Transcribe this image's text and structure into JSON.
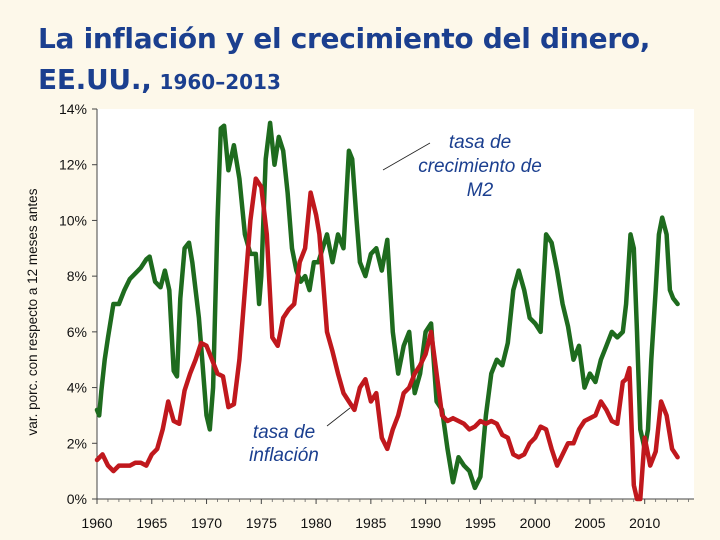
{
  "title": "La inflación y el crecimiento del dinero,",
  "title_line2": "EE.UU.,",
  "title_years": "1960–2013",
  "chart_data": {
    "type": "line",
    "title": "La inflación y el crecimiento del dinero, EE.UU., 1960–2013",
    "xlabel": "",
    "ylabel": "var. porc. con respecto a 12 meses antes",
    "xlim": [
      1960,
      2014.5
    ],
    "ylim": [
      0,
      14
    ],
    "x_ticks": [
      "1960",
      "1965",
      "1970",
      "1975",
      "1980",
      "1985",
      "1990",
      "1995",
      "2000",
      "2005",
      "2010"
    ],
    "y_ticks": [
      "0%",
      "2%",
      "4%",
      "6%",
      "8%",
      "10%",
      "12%",
      "14%"
    ],
    "grid": false,
    "annotations": [
      {
        "lines": [
          "tasa de",
          "crecimiento de",
          "M2"
        ],
        "series": "M2"
      },
      {
        "lines": [
          "tasa de",
          "inflación"
        ],
        "series": "inflation"
      }
    ],
    "series": [
      {
        "key": "M2",
        "color": "#1e6b1e",
        "x": [
          1960.0,
          1960.2,
          1960.4,
          1960.7,
          1961.0,
          1961.5,
          1962.0,
          1962.5,
          1963.0,
          1963.5,
          1964.0,
          1964.5,
          1964.8,
          1965.3,
          1965.8,
          1966.2,
          1966.6,
          1967.0,
          1967.3,
          1967.6,
          1968.0,
          1968.4,
          1968.7,
          1969.0,
          1969.3,
          1969.6,
          1970.0,
          1970.3,
          1970.6,
          1971.0,
          1971.3,
          1971.6,
          1972.0,
          1972.5,
          1973.0,
          1973.5,
          1974.0,
          1974.5,
          1974.8,
          1975.0,
          1975.4,
          1975.8,
          1976.2,
          1976.6,
          1977.0,
          1977.4,
          1977.8,
          1978.2,
          1978.6,
          1979.0,
          1979.4,
          1979.8,
          1980.2,
          1980.6,
          1981.0,
          1981.5,
          1982.0,
          1982.5,
          1983.0,
          1983.3,
          1983.7,
          1984.0,
          1984.5,
          1985.0,
          1985.5,
          1986.0,
          1986.5,
          1987.0,
          1987.5,
          1988.0,
          1988.5,
          1989.0,
          1989.5,
          1990.0,
          1990.5,
          1991.0,
          1991.5,
          1992.0,
          1992.5,
          1993.0,
          1993.5,
          1994.0,
          1994.5,
          1995.0,
          1995.5,
          1996.0,
          1996.5,
          1997.0,
          1997.5,
          1998.0,
          1998.5,
          1999.0,
          1999.5,
          2000.0,
          2000.5,
          2001.0,
          2001.5,
          2002.0,
          2002.5,
          2003.0,
          2003.5,
          2004.0,
          2004.5,
          2005.0,
          2005.5,
          2006.0,
          2006.5,
          2007.0,
          2007.5,
          2008.0,
          2008.3,
          2008.7,
          2009.0,
          2009.3,
          2009.6,
          2010.0,
          2010.3,
          2010.6,
          2011.0,
          2011.3,
          2011.6,
          2012.0,
          2012.3,
          2012.6,
          2013.0
        ],
        "values": [
          3.2,
          3.0,
          3.9,
          5.0,
          5.8,
          7.0,
          7.0,
          7.5,
          7.9,
          8.1,
          8.3,
          8.6,
          8.7,
          7.8,
          7.6,
          8.2,
          7.5,
          4.6,
          4.4,
          7.2,
          9.0,
          9.2,
          8.5,
          7.5,
          6.5,
          5.0,
          3.0,
          2.5,
          4.0,
          10.0,
          13.3,
          13.4,
          11.8,
          12.7,
          11.5,
          9.5,
          8.8,
          8.8,
          7.0,
          8.0,
          12.2,
          13.5,
          12.0,
          13.0,
          12.5,
          11.0,
          9.0,
          8.2,
          7.8,
          8.0,
          7.5,
          8.5,
          8.5,
          9.0,
          9.5,
          8.5,
          9.5,
          9.0,
          12.5,
          12.2,
          10.0,
          8.5,
          8.0,
          8.8,
          9.0,
          8.2,
          9.3,
          6.0,
          4.5,
          5.5,
          6.0,
          3.8,
          4.5,
          6.0,
          6.3,
          3.5,
          3.2,
          1.8,
          0.6,
          1.5,
          1.2,
          1.0,
          0.4,
          0.8,
          3.0,
          4.5,
          5.0,
          4.8,
          5.6,
          7.5,
          8.2,
          7.5,
          6.5,
          6.3,
          6.0,
          9.5,
          9.2,
          8.2,
          7.0,
          6.2,
          5.0,
          5.5,
          4.0,
          4.5,
          4.2,
          5.0,
          5.5,
          6.0,
          5.8,
          6.0,
          7.0,
          9.5,
          9.0,
          6.0,
          2.5,
          1.8,
          2.5,
          5.0,
          7.5,
          9.5,
          10.1,
          9.5,
          7.5,
          7.2,
          7.0
        ]
      },
      {
        "key": "inflation",
        "color": "#c0181d",
        "x": [
          1960.0,
          1960.5,
          1961.0,
          1961.5,
          1962.0,
          1962.5,
          1963.0,
          1963.5,
          1964.0,
          1964.5,
          1965.0,
          1965.5,
          1966.0,
          1966.5,
          1967.0,
          1967.5,
          1968.0,
          1968.5,
          1969.0,
          1969.5,
          1970.0,
          1970.5,
          1971.0,
          1971.5,
          1972.0,
          1972.5,
          1973.0,
          1973.5,
          1974.0,
          1974.5,
          1975.0,
          1975.5,
          1976.0,
          1976.5,
          1977.0,
          1977.5,
          1978.0,
          1978.5,
          1979.0,
          1979.5,
          1980.0,
          1980.3,
          1980.6,
          1981.0,
          1981.5,
          1982.0,
          1982.5,
          1983.0,
          1983.5,
          1984.0,
          1984.5,
          1985.0,
          1985.5,
          1986.0,
          1986.5,
          1987.0,
          1987.5,
          1988.0,
          1988.5,
          1989.0,
          1989.5,
          1990.0,
          1990.5,
          1991.0,
          1991.5,
          1992.0,
          1992.5,
          1993.0,
          1993.5,
          1994.0,
          1994.5,
          1995.0,
          1995.5,
          1996.0,
          1996.5,
          1997.0,
          1997.5,
          1998.0,
          1998.5,
          1999.0,
          1999.5,
          2000.0,
          2000.5,
          2001.0,
          2001.5,
          2002.0,
          2002.5,
          2003.0,
          2003.5,
          2004.0,
          2004.5,
          2005.0,
          2005.5,
          2006.0,
          2006.5,
          2007.0,
          2007.5,
          2008.0,
          2008.3,
          2008.6,
          2009.0,
          2009.3,
          2009.6,
          2010.0,
          2010.5,
          2011.0,
          2011.5,
          2012.0,
          2012.5,
          2013.0
        ],
        "values": [
          1.4,
          1.6,
          1.2,
          1.0,
          1.2,
          1.2,
          1.2,
          1.3,
          1.3,
          1.2,
          1.6,
          1.8,
          2.5,
          3.5,
          2.8,
          2.7,
          3.9,
          4.5,
          5.0,
          5.6,
          5.5,
          5.0,
          4.5,
          4.4,
          3.3,
          3.4,
          5.0,
          7.5,
          10.0,
          11.5,
          11.2,
          9.5,
          5.8,
          5.5,
          6.5,
          6.8,
          7.0,
          8.5,
          9.0,
          11.0,
          10.2,
          9.5,
          8.0,
          6.0,
          5.3,
          4.5,
          3.8,
          3.5,
          3.2,
          4.0,
          4.3,
          3.5,
          3.8,
          2.2,
          1.8,
          2.5,
          3.0,
          3.8,
          4.0,
          4.5,
          4.8,
          5.2,
          6.0,
          4.5,
          3.0,
          2.8,
          2.9,
          2.8,
          2.7,
          2.5,
          2.6,
          2.8,
          2.7,
          2.8,
          2.7,
          2.3,
          2.2,
          1.6,
          1.5,
          1.6,
          2.0,
          2.2,
          2.6,
          2.5,
          1.8,
          1.2,
          1.6,
          2.0,
          2.0,
          2.5,
          2.8,
          2.9,
          3.0,
          3.5,
          3.2,
          2.8,
          2.7,
          4.2,
          4.3,
          4.7,
          0.5,
          -1.0,
          -0.5,
          2.2,
          1.2,
          1.7,
          3.5,
          3.0,
          1.8,
          1.5
        ]
      }
    ]
  }
}
